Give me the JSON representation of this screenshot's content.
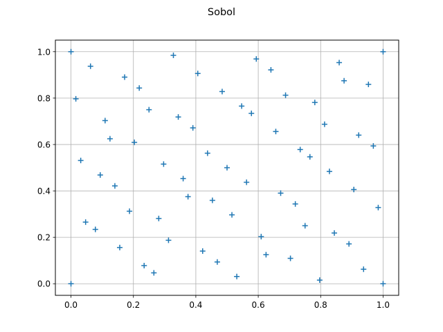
{
  "chart_data": {
    "type": "scatter",
    "title": "Sobol",
    "xlabel": "",
    "ylabel": "",
    "xlim": [
      -0.05,
      1.05
    ],
    "ylim": [
      -0.05,
      1.05
    ],
    "xticks": [
      0.0,
      0.2,
      0.4,
      0.6,
      0.8,
      1.0
    ],
    "yticks": [
      0.0,
      0.2,
      0.4,
      0.6,
      0.8,
      1.0
    ],
    "xtick_labels": [
      "0.0",
      "0.2",
      "0.4",
      "0.6",
      "0.8",
      "1.0"
    ],
    "ytick_labels": [
      "0.0",
      "0.2",
      "0.4",
      "0.6",
      "0.8",
      "1.0"
    ],
    "grid": true,
    "marker": "+",
    "color": "#1f77b4",
    "series": [
      {
        "x": [
          0.0,
          0.5,
          0.75,
          0.25,
          0.375,
          0.875,
          0.625,
          0.125,
          0.1875,
          0.6875,
          0.9375,
          0.4375,
          0.3125,
          0.8125,
          0.5625,
          0.0625,
          0.09375,
          0.59375,
          0.84375,
          0.34375,
          0.46875,
          0.96875,
          0.71875,
          0.21875,
          0.15625,
          0.65625,
          0.90625,
          0.40625,
          0.28125,
          0.78125,
          0.53125,
          0.03125,
          0.046875,
          0.546875,
          0.796875,
          0.296875,
          0.421875,
          0.921875,
          0.671875,
          0.171875,
          0.234375,
          0.734375,
          0.984375,
          0.484375,
          0.359375,
          0.859375,
          0.609375,
          0.109375,
          0.078125,
          0.578125,
          0.828125,
          0.328125,
          0.453125,
          0.953125,
          0.703125,
          0.203125,
          0.140625,
          0.640625,
          0.890625,
          0.390625,
          0.265625,
          0.765625,
          0.515625,
          0.015625,
          1.0,
          0.0,
          1.0
        ],
        "y": [
          0.0,
          0.5,
          0.25,
          0.75,
          0.375,
          0.875,
          0.125,
          0.625,
          0.3125,
          0.8125,
          0.0625,
          0.5625,
          0.1875,
          0.6875,
          0.4375,
          0.9375,
          0.46875,
          0.96875,
          0.21875,
          0.71875,
          0.09375,
          0.59375,
          0.34375,
          0.84375,
          0.15625,
          0.65625,
          0.40625,
          0.90625,
          0.28125,
          0.78125,
          0.03125,
          0.53125,
          0.265625,
          0.765625,
          0.015625,
          0.515625,
          0.140625,
          0.640625,
          0.390625,
          0.890625,
          0.078125,
          0.578125,
          0.328125,
          0.828125,
          0.453125,
          0.953125,
          0.203125,
          0.703125,
          0.234375,
          0.734375,
          0.484375,
          0.984375,
          0.359375,
          0.859375,
          0.109375,
          0.609375,
          0.421875,
          0.921875,
          0.171875,
          0.671875,
          0.046875,
          0.546875,
          0.296875,
          0.796875,
          0.0,
          1.0,
          1.0
        ]
      }
    ]
  }
}
